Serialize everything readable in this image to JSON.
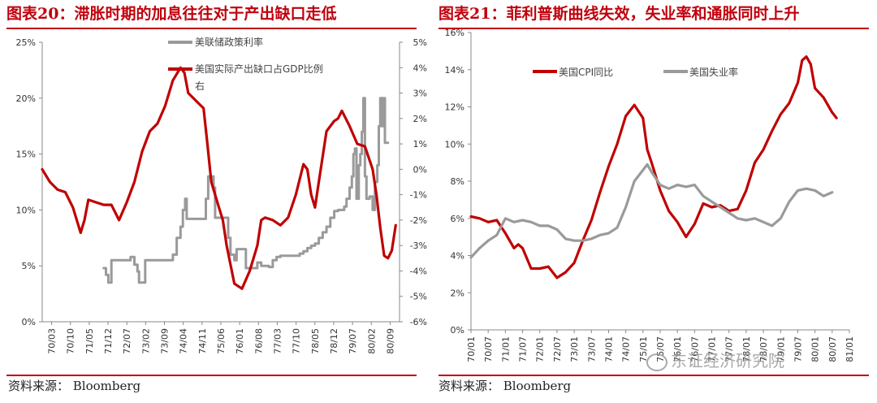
{
  "left": {
    "title": "图表20：滞胀时期的加息往往对于产出缺口走低",
    "source": "资料来源：  Bloomberg",
    "chart_data": {
      "type": "line",
      "y_left": {
        "min": 0,
        "max": 25,
        "ticks": [
          "0%",
          "5%",
          "10%",
          "15%",
          "20%",
          "25%"
        ]
      },
      "y_right": {
        "min": -6,
        "max": 5,
        "ticks": [
          "-6%",
          "-5%",
          "-4%",
          "-3%",
          "-2%",
          "-1%",
          "0%",
          "1%",
          "2%",
          "3%",
          "4%",
          "5%"
        ]
      },
      "x_ticks": [
        "70/03",
        "70/10",
        "71/05",
        "71/12",
        "72/07",
        "73/02",
        "73/09",
        "74/04",
        "74/11",
        "75/06",
        "76/01",
        "76/08",
        "77/03",
        "77/10",
        "78/05",
        "78/12",
        "79/07",
        "80/02",
        "80/09"
      ],
      "series": [
        {
          "name": "美联储政策利率",
          "axis": "left",
          "color": "#9a9a9a",
          "points": [
            [
              8,
              4.8
            ],
            [
              8.3,
              4.2
            ],
            [
              8.6,
              3.5
            ],
            [
              9,
              5.5
            ],
            [
              10,
              5.5
            ],
            [
              11,
              5.5
            ],
            [
              11.5,
              5.8
            ],
            [
              12,
              5.1
            ],
            [
              12.4,
              4.5
            ],
            [
              12.6,
              3.5
            ],
            [
              13,
              3.5
            ],
            [
              13.4,
              5.5
            ],
            [
              14,
              5.5
            ],
            [
              15,
              5.5
            ],
            [
              16,
              5.5
            ],
            [
              16.6,
              5.5
            ],
            [
              17,
              6
            ],
            [
              17.5,
              7.5
            ],
            [
              18,
              8.5
            ],
            [
              18.3,
              10
            ],
            [
              18.6,
              11
            ],
            [
              18.8,
              9.2
            ],
            [
              19.5,
              9.2
            ],
            [
              20,
              9.2
            ],
            [
              20.5,
              9.2
            ],
            [
              21,
              9.2
            ],
            [
              21.3,
              11
            ],
            [
              21.6,
              13
            ],
            [
              22,
              13
            ],
            [
              22.3,
              12
            ],
            [
              22.5,
              9.3
            ],
            [
              23,
              9.3
            ],
            [
              23.5,
              9.3
            ],
            [
              24,
              9.3
            ],
            [
              24.2,
              7.5
            ],
            [
              24.5,
              6
            ],
            [
              25,
              5.5
            ],
            [
              25.3,
              6.5
            ],
            [
              26,
              6.5
            ],
            [
              26.4,
              6.5
            ],
            [
              26.5,
              4.8
            ],
            [
              27,
              4.8
            ],
            [
              27.6,
              4.8
            ],
            [
              28,
              5.3
            ],
            [
              28.5,
              5
            ],
            [
              29,
              5
            ],
            [
              29.5,
              4.9
            ],
            [
              30,
              5.5
            ],
            [
              30.5,
              5.8
            ],
            [
              31,
              5.9
            ],
            [
              32,
              5.9
            ],
            [
              33,
              5.9
            ],
            [
              33.5,
              6.1
            ],
            [
              34,
              6.3
            ],
            [
              34.5,
              6.6
            ],
            [
              35,
              6.8
            ],
            [
              35.5,
              7
            ],
            [
              36,
              7.5
            ],
            [
              36.5,
              8
            ],
            [
              37,
              8.5
            ],
            [
              37.5,
              9.3
            ],
            [
              38,
              9.9
            ],
            [
              38.5,
              10
            ],
            [
              39,
              10
            ],
            [
              39.3,
              10.3
            ],
            [
              39.6,
              11
            ],
            [
              40,
              12
            ],
            [
              40.3,
              13
            ],
            [
              40.5,
              15
            ],
            [
              40.7,
              15.5
            ],
            [
              40.9,
              11
            ],
            [
              41.2,
              14
            ],
            [
              41.4,
              15
            ],
            [
              41.6,
              17
            ],
            [
              41.8,
              20
            ],
            [
              42,
              13
            ],
            [
              42.2,
              11
            ],
            [
              42.6,
              11.2
            ],
            [
              43,
              10
            ],
            [
              43.3,
              12.5
            ],
            [
              43.6,
              14
            ],
            [
              43.8,
              17.5
            ],
            [
              44,
              20
            ],
            [
              44.2,
              17.5
            ],
            [
              44.4,
              20
            ],
            [
              44.6,
              16
            ],
            [
              45,
              16
            ]
          ]
        },
        {
          "name": "美国实际产出缺口占GDP比例（右）",
          "legend_lines": [
            "美国实际产出缺口占GDP比例",
            "右"
          ],
          "axis": "right",
          "color": "#c00000",
          "points": [
            [
              0,
              0
            ],
            [
              1,
              -0.5
            ],
            [
              2,
              -0.8
            ],
            [
              3,
              -0.9
            ],
            [
              4,
              -1.5
            ],
            [
              5,
              -2.5
            ],
            [
              5.5,
              -2
            ],
            [
              6,
              -1.2
            ],
            [
              7,
              -1.3
            ],
            [
              8,
              -1.4
            ],
            [
              9,
              -1.4
            ],
            [
              10,
              -2
            ],
            [
              11,
              -1.3
            ],
            [
              12,
              -0.5
            ],
            [
              13,
              0.7
            ],
            [
              14,
              1.5
            ],
            [
              15,
              1.8
            ],
            [
              16,
              2.5
            ],
            [
              17,
              3.5
            ],
            [
              18,
              4
            ],
            [
              18.5,
              3.8
            ],
            [
              19,
              3
            ],
            [
              20,
              2.7
            ],
            [
              21,
              2.4
            ],
            [
              21.5,
              1
            ],
            [
              22,
              -0.5
            ],
            [
              23,
              -1.5
            ],
            [
              23.5,
              -2
            ],
            [
              24,
              -3
            ],
            [
              25,
              -4.5
            ],
            [
              26,
              -4.7
            ],
            [
              27,
              -4
            ],
            [
              28,
              -3
            ],
            [
              28.5,
              -2
            ],
            [
              29,
              -1.9
            ],
            [
              30,
              -2
            ],
            [
              31,
              -2.2
            ],
            [
              32,
              -1.9
            ],
            [
              33,
              -1
            ],
            [
              34,
              0.2
            ],
            [
              34.5,
              0
            ],
            [
              35,
              -1
            ],
            [
              35.5,
              -1.5
            ],
            [
              36,
              -0.5
            ],
            [
              37,
              1.5
            ],
            [
              38,
              1.9
            ],
            [
              38.5,
              2
            ],
            [
              39,
              2.3
            ],
            [
              40,
              1.7
            ],
            [
              41,
              1
            ],
            [
              42,
              0.9
            ],
            [
              43,
              0
            ],
            [
              43.5,
              -1
            ],
            [
              44,
              -2.3
            ],
            [
              44.5,
              -3.4
            ],
            [
              45,
              -3.5
            ],
            [
              45.5,
              -3.2
            ],
            [
              46,
              -2.2
            ]
          ]
        }
      ]
    }
  },
  "right": {
    "title": "图表21：菲利普斯曲线失效，失业率和通胀同时上升",
    "source": "资料来源：  Bloomberg",
    "chart_data": {
      "type": "line",
      "y": {
        "min": 0,
        "max": 16,
        "ticks": [
          "0%",
          "2%",
          "4%",
          "6%",
          "8%",
          "10%",
          "12%",
          "14%",
          "16%"
        ]
      },
      "x_ticks": [
        "70/01",
        "70/07",
        "71/01",
        "71/07",
        "72/01",
        "72/07",
        "73/01",
        "73/07",
        "74/01",
        "74/07",
        "75/01",
        "75/07",
        "76/01",
        "76/07",
        "77/01",
        "77/07",
        "78/01",
        "78/07",
        "79/01",
        "79/07",
        "80/01",
        "80/07",
        "81/01"
      ],
      "series": [
        {
          "name": "美国CPI同比",
          "axis": "left",
          "color": "#c00000",
          "points": [
            [
              0,
              6.1
            ],
            [
              1,
              6
            ],
            [
              2,
              5.8
            ],
            [
              3,
              5.9
            ],
            [
              4,
              5.2
            ],
            [
              5,
              4.4
            ],
            [
              5.5,
              4.6
            ],
            [
              6,
              4.4
            ],
            [
              7,
              3.3
            ],
            [
              8,
              3.3
            ],
            [
              9,
              3.4
            ],
            [
              10,
              2.8
            ],
            [
              11,
              3.1
            ],
            [
              12,
              3.6
            ],
            [
              13,
              4.8
            ],
            [
              14,
              5.9
            ],
            [
              15,
              7.4
            ],
            [
              16,
              8.8
            ],
            [
              17,
              10
            ],
            [
              18,
              11.5
            ],
            [
              19,
              12.1
            ],
            [
              20,
              11.4
            ],
            [
              20.5,
              9.7
            ],
            [
              21,
              9
            ],
            [
              22,
              7.5
            ],
            [
              23,
              6.4
            ],
            [
              24,
              5.8
            ],
            [
              25,
              5
            ],
            [
              26,
              5.7
            ],
            [
              27,
              6.8
            ],
            [
              28,
              6.6
            ],
            [
              29,
              6.7
            ],
            [
              30,
              6.4
            ],
            [
              31,
              6.5
            ],
            [
              32,
              7.5
            ],
            [
              33,
              9
            ],
            [
              34,
              9.7
            ],
            [
              35,
              10.7
            ],
            [
              36,
              11.6
            ],
            [
              37,
              12.2
            ],
            [
              38,
              13.3
            ],
            [
              38.5,
              14.5
            ],
            [
              39,
              14.7
            ],
            [
              39.5,
              14.3
            ],
            [
              40,
              13
            ],
            [
              41,
              12.5
            ],
            [
              42,
              11.7
            ],
            [
              42.5,
              11.4
            ]
          ]
        },
        {
          "name": "美国失业率",
          "axis": "left",
          "color": "#9a9a9a",
          "points": [
            [
              0,
              3.9
            ],
            [
              1,
              4.4
            ],
            [
              2,
              4.8
            ],
            [
              3,
              5.1
            ],
            [
              4,
              6
            ],
            [
              5,
              5.8
            ],
            [
              6,
              5.9
            ],
            [
              7,
              5.8
            ],
            [
              8,
              5.6
            ],
            [
              9,
              5.6
            ],
            [
              10,
              5.4
            ],
            [
              11,
              4.9
            ],
            [
              12,
              4.8
            ],
            [
              13,
              4.8
            ],
            [
              14,
              4.9
            ],
            [
              15,
              5.1
            ],
            [
              16,
              5.2
            ],
            [
              17,
              5.5
            ],
            [
              18,
              6.6
            ],
            [
              19,
              8
            ],
            [
              20,
              8.6
            ],
            [
              20.5,
              8.9
            ],
            [
              21,
              8.5
            ],
            [
              22,
              7.8
            ],
            [
              23,
              7.6
            ],
            [
              24,
              7.8
            ],
            [
              25,
              7.7
            ],
            [
              26,
              7.8
            ],
            [
              27,
              7.2
            ],
            [
              28,
              6.9
            ],
            [
              29,
              6.6
            ],
            [
              30,
              6.3
            ],
            [
              31,
              6
            ],
            [
              32,
              5.9
            ],
            [
              33,
              6
            ],
            [
              34,
              5.8
            ],
            [
              35,
              5.6
            ],
            [
              36,
              6
            ],
            [
              37,
              6.9
            ],
            [
              38,
              7.5
            ],
            [
              39,
              7.6
            ],
            [
              40,
              7.5
            ],
            [
              41,
              7.2
            ],
            [
              42,
              7.4
            ]
          ]
        }
      ]
    }
  },
  "watermark": "东证经济研究院",
  "wm_icon": "wechat-icon"
}
